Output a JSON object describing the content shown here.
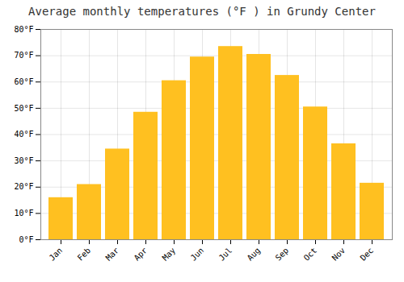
{
  "chart_data": {
    "type": "bar",
    "title": "Average monthly temperatures (°F ) in Grundy Center",
    "categories": [
      "Jan",
      "Feb",
      "Mar",
      "Apr",
      "May",
      "Jun",
      "Jul",
      "Aug",
      "Sep",
      "Oct",
      "Nov",
      "Dec"
    ],
    "values": [
      16,
      21,
      34.5,
      48.5,
      60.5,
      69.5,
      73.5,
      70.5,
      62.5,
      50.5,
      36.5,
      21.5
    ],
    "color": "#FFC020",
    "ylim": [
      0,
      80
    ],
    "yticks": [
      {
        "value": 0,
        "label": "0°F"
      },
      {
        "value": 10,
        "label": "10°F"
      },
      {
        "value": 20,
        "label": "20°F"
      },
      {
        "value": 30,
        "label": "30°F"
      },
      {
        "value": 40,
        "label": "40°F"
      },
      {
        "value": 50,
        "label": "50°F"
      },
      {
        "value": 60,
        "label": "60°F"
      },
      {
        "value": 70,
        "label": "70°F"
      },
      {
        "value": 80,
        "label": "80°F"
      }
    ],
    "grid": true
  }
}
